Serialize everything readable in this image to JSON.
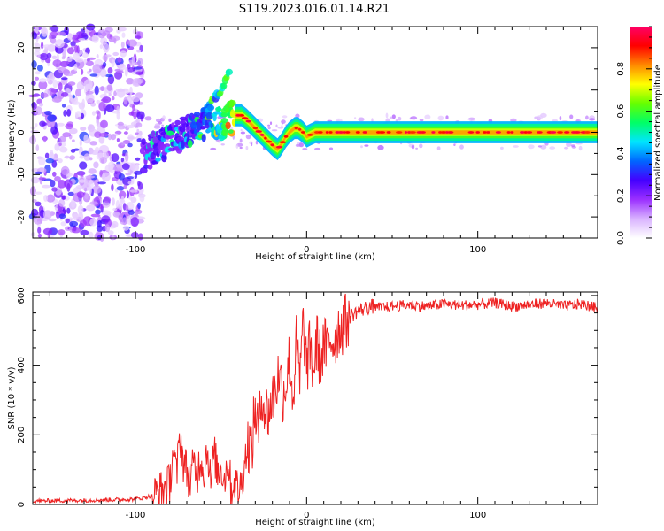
{
  "title": "S119.2023.016.01.14.R21",
  "chart_data": [
    {
      "type": "heatmap",
      "xlabel": "Height of straight line (km)",
      "ylabel": "Frequency (Hz)",
      "xlim": [
        -160,
        170
      ],
      "ylim": [
        -25,
        25
      ],
      "x_ticks": [
        -100,
        0,
        100
      ],
      "y_ticks": [
        -20,
        -10,
        0,
        10,
        20
      ],
      "colorbar": {
        "label": "Normalized spectral amplitude",
        "range": [
          0,
          1
        ],
        "ticks": [
          0.0,
          0.2,
          0.4,
          0.6,
          0.8
        ],
        "colors": [
          "#ffffff",
          "#d9b3ff",
          "#9b30ff",
          "#4400ff",
          "#0066ff",
          "#00e5ff",
          "#00ff66",
          "#66ff00",
          "#ffff00",
          "#ff8800",
          "#ff0000",
          "#ff0066"
        ]
      },
      "ridge": {
        "x": [
          -95,
          -90,
          -85,
          -80,
          -75,
          -70,
          -65,
          -60,
          -55,
          -50,
          -45,
          -42,
          -38,
          -35,
          -30,
          -25,
          -20,
          -17,
          -15,
          -12,
          -10,
          -7,
          -5,
          -2,
          0,
          5,
          10,
          20,
          40,
          60,
          80,
          100,
          120,
          140,
          160,
          170
        ],
        "y": [
          -6,
          -4,
          -3,
          -2,
          -1,
          0,
          1,
          2,
          3,
          2,
          3,
          4,
          4,
          3,
          1,
          -1,
          -3,
          -4,
          -3,
          -1,
          0,
          1,
          1,
          0,
          -1,
          0,
          0,
          0,
          0,
          0,
          0,
          0,
          0,
          0,
          0,
          0
        ],
        "thickness": [
          0.3,
          0.3,
          0.3,
          0.3,
          0.3,
          0.3,
          0.35,
          0.4,
          0.5,
          0.55,
          0.65,
          0.75,
          0.8,
          0.8,
          0.8,
          0.8,
          0.75,
          0.7,
          0.7,
          0.8,
          0.8,
          0.85,
          0.85,
          0.85,
          0.9,
          0.95,
          0.95,
          0.95,
          0.95,
          0.98,
          0.98,
          0.98,
          0.98,
          0.98,
          0.95,
          0.9
        ]
      },
      "side_branch": {
        "x": [
          -58,
          -55,
          -52,
          -50,
          -48,
          -45
        ],
        "y": [
          6,
          8,
          9,
          10,
          12,
          14
        ]
      },
      "noise_region_x": [
        -160,
        -100
      ]
    },
    {
      "type": "line",
      "xlabel": "Height of straight line (km)",
      "ylabel": "SNR (10 * v/v)",
      "xlim": [
        -160,
        170
      ],
      "ylim": [
        0,
        610
      ],
      "x_ticks": [
        -100,
        0,
        100
      ],
      "y_ticks": [
        0,
        200,
        400,
        600
      ],
      "series": [
        {
          "color": "#ee2222",
          "x": [
            -160,
            -130,
            -100,
            -90,
            -85,
            -80,
            -78,
            -76,
            -74,
            -72,
            -70,
            -68,
            -66,
            -64,
            -62,
            -60,
            -58,
            -56,
            -54,
            -52,
            -50,
            -48,
            -46,
            -44,
            -42,
            -40,
            -38,
            -36,
            -34,
            -32,
            -30,
            -28,
            -26,
            -24,
            -22,
            -20,
            -18,
            -16,
            -14,
            -12,
            -10,
            -8,
            -6,
            -4,
            -2,
            0,
            2,
            4,
            6,
            8,
            10,
            12,
            14,
            16,
            18,
            20,
            25,
            30,
            35,
            40,
            50,
            60,
            70,
            80,
            90,
            100,
            110,
            120,
            130,
            140,
            150,
            160,
            170
          ],
          "y": [
            10,
            12,
            15,
            25,
            40,
            60,
            160,
            80,
            200,
            120,
            100,
            60,
            120,
            80,
            140,
            90,
            170,
            60,
            150,
            90,
            110,
            70,
            130,
            40,
            70,
            40,
            60,
            130,
            180,
            160,
            280,
            200,
            330,
            260,
            270,
            300,
            340,
            380,
            320,
            350,
            420,
            300,
            460,
            350,
            520,
            390,
            450,
            380,
            470,
            410,
            460,
            440,
            480,
            470,
            500,
            510,
            540,
            555,
            565,
            570,
            575,
            580,
            575,
            582,
            578,
            580,
            585,
            575,
            580,
            585,
            575,
            582,
            570
          ]
        }
      ]
    }
  ]
}
